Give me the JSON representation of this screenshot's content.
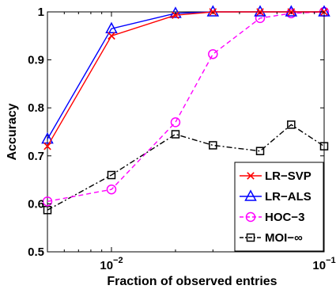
{
  "chart_data": {
    "type": "line",
    "title": "",
    "xlabel": "Fraction of observed entries",
    "ylabel": "Accuracy",
    "xscale": "log",
    "xlim": [
      0.005,
      0.1
    ],
    "ylim": [
      0.5,
      1.0
    ],
    "grid": false,
    "legend_position": "bottom-right",
    "x_ticks": [
      {
        "value": 0.01,
        "base": "10",
        "exp": "−2"
      },
      {
        "value": 0.1,
        "base": "10",
        "exp": "−1"
      }
    ],
    "y_ticks": [
      {
        "value": 0.5,
        "label": "0.5"
      },
      {
        "value": 0.6,
        "label": "0.6"
      },
      {
        "value": 0.7,
        "label": "0.7"
      },
      {
        "value": 0.8,
        "label": "0.8"
      },
      {
        "value": 0.9,
        "label": "0.9"
      },
      {
        "value": 1.0,
        "label": "1"
      }
    ],
    "x": [
      0.005,
      0.01,
      0.02,
      0.03,
      0.05,
      0.07,
      0.1
    ],
    "series": [
      {
        "name": "LR−SVP",
        "color": "#ff0000",
        "dash": "solid",
        "marker": "x-mark",
        "values": [
          0.72,
          0.95,
          0.993,
          1.0,
          1.0,
          1.0,
          1.0
        ]
      },
      {
        "name": "LR−ALS",
        "color": "#0000ff",
        "dash": "solid",
        "marker": "triangle",
        "values": [
          0.735,
          0.965,
          0.997,
          1.0,
          1.0,
          1.0,
          1.0
        ]
      },
      {
        "name": "HOC−3",
        "color": "#ff00ff",
        "dash": "dashed",
        "marker": "circle",
        "values": [
          0.605,
          0.63,
          0.77,
          0.912,
          0.987,
          0.997,
          1.0
        ]
      },
      {
        "name": "MOI−∞",
        "color": "#000000",
        "dash": "dash-dot",
        "marker": "square",
        "values": [
          0.587,
          0.66,
          0.745,
          0.722,
          0.71,
          0.765,
          0.72
        ]
      }
    ]
  }
}
